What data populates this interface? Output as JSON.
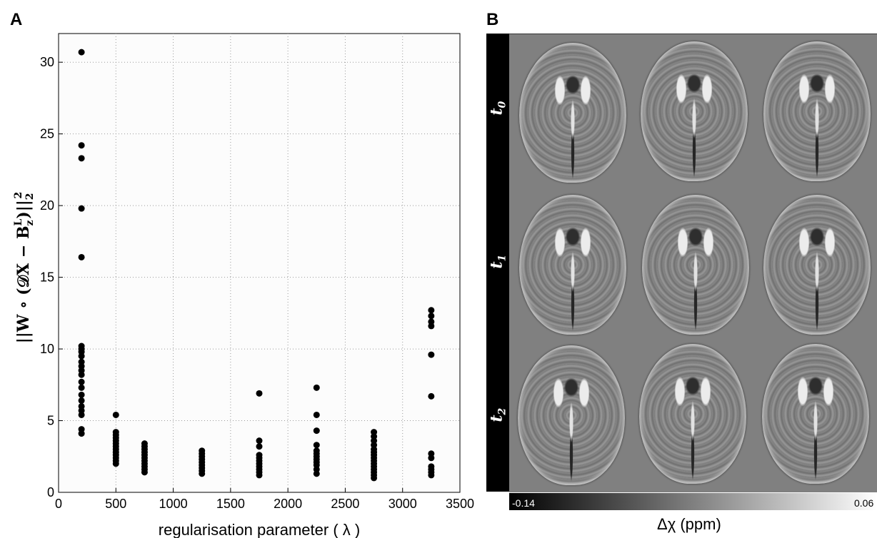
{
  "panel_a_label": "A",
  "panel_b_label": "B",
  "chart_data": {
    "type": "scatter",
    "xlabel": "regularisation parameter ( λ )",
    "ylabel": "||W ∘ (𝒟X − B",
    "ylabel_sub": "z",
    "ylabel_sup": "L",
    "ylabel_tail": ")||",
    "ylabel_norm_sub": "2",
    "ylabel_norm_sup": "2",
    "xlim": [
      0,
      3500
    ],
    "ylim": [
      0,
      32
    ],
    "xticks": [
      0,
      500,
      1000,
      1500,
      2000,
      2500,
      3000,
      3500
    ],
    "yticks": [
      0,
      5,
      10,
      15,
      20,
      25,
      30
    ],
    "grid": true,
    "marker_color": "#000000",
    "series": [
      {
        "x": 200,
        "y": [
          30.7,
          24.2,
          23.3,
          19.8,
          16.4,
          10.2,
          10.0,
          9.8,
          9.5,
          9.1,
          8.8,
          8.5,
          8.2,
          7.7,
          7.3,
          6.8,
          6.4,
          6.0,
          5.7,
          5.4,
          4.4,
          4.1
        ]
      },
      {
        "x": 500,
        "y": [
          5.4,
          4.2,
          4.0,
          3.8,
          3.6,
          3.4,
          3.2,
          3.0,
          2.8,
          2.6,
          2.4,
          2.2,
          2.0
        ]
      },
      {
        "x": 750,
        "y": [
          3.4,
          3.2,
          3.0,
          2.8,
          2.6,
          2.4,
          2.2,
          2.0,
          1.8,
          1.6,
          1.4
        ]
      },
      {
        "x": 1250,
        "y": [
          2.9,
          2.7,
          2.5,
          2.3,
          2.1,
          1.9,
          1.7,
          1.5,
          1.3
        ]
      },
      {
        "x": 1750,
        "y": [
          6.9,
          3.6,
          3.2,
          2.6,
          2.4,
          2.2,
          2.0,
          1.8,
          1.6,
          1.4,
          1.2
        ]
      },
      {
        "x": 2250,
        "y": [
          7.3,
          5.4,
          4.3,
          3.3,
          2.9,
          2.7,
          2.5,
          2.3,
          2.1,
          1.9,
          1.6,
          1.3
        ]
      },
      {
        "x": 2750,
        "y": [
          4.2,
          3.9,
          3.6,
          3.3,
          3.0,
          2.8,
          2.6,
          2.4,
          2.2,
          2.0,
          1.8,
          1.6,
          1.4,
          1.2,
          1.0
        ]
      },
      {
        "x": 3250,
        "y": [
          12.7,
          12.3,
          11.9,
          11.6,
          9.6,
          6.7,
          2.7,
          2.4,
          1.8,
          1.6,
          1.4,
          1.2
        ]
      }
    ]
  },
  "panel_b": {
    "time_labels": [
      {
        "main": "t",
        "sub": "0"
      },
      {
        "main": "t",
        "sub": "1"
      },
      {
        "main": "t",
        "sub": "2"
      }
    ],
    "colorbar": {
      "min_label": "-0.14",
      "max_label": "0.06",
      "title": "Δχ (ppm)"
    },
    "background_color": "#808080"
  }
}
